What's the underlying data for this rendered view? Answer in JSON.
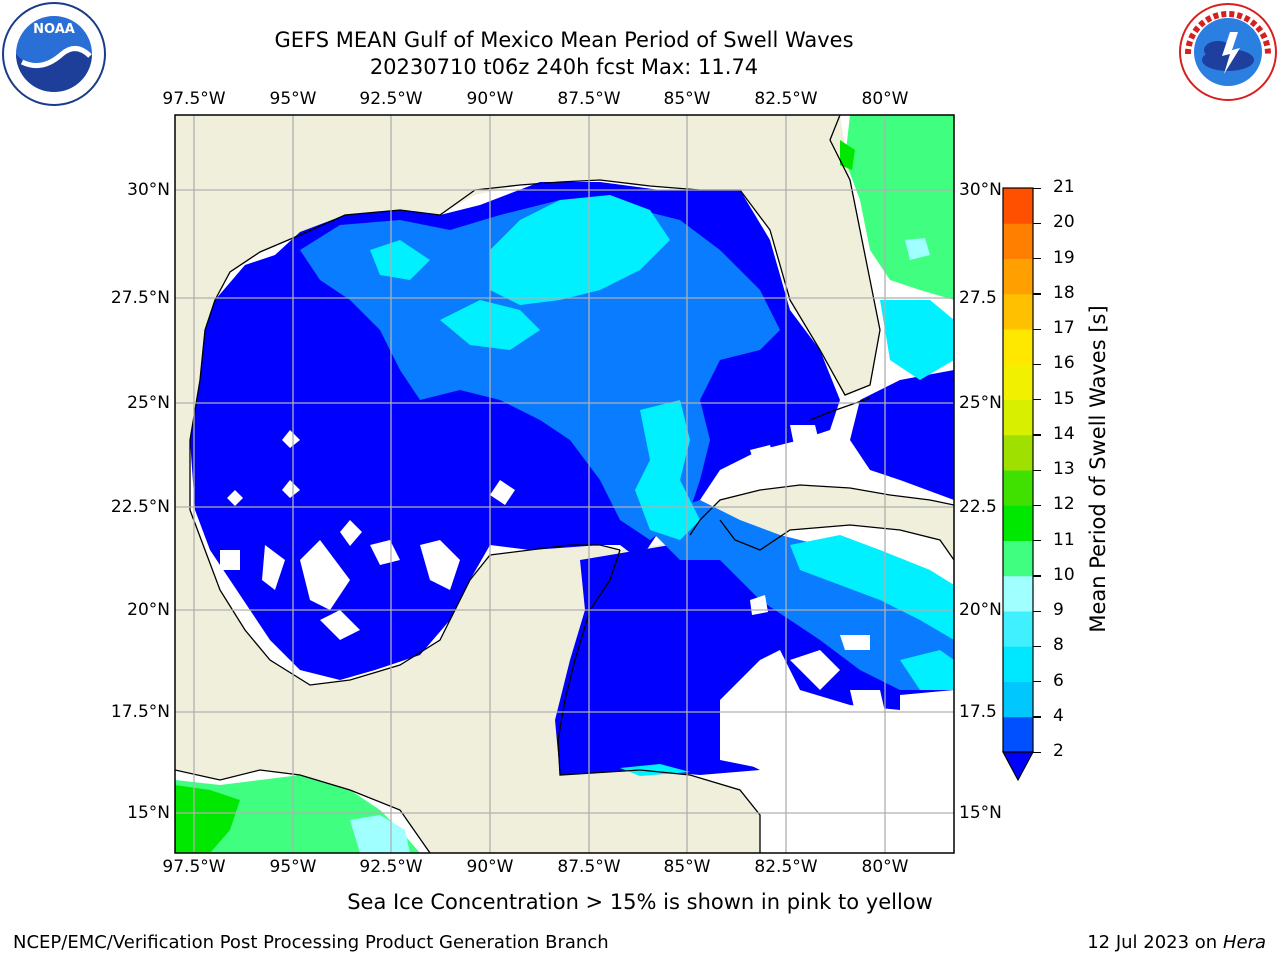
{
  "title_line1": "GEFS MEAN Gulf of Mexico Mean Period of Swell Waves",
  "title_line2": "20230710 t06z 240h fcst   Max: 11.74",
  "lon_labels": [
    "97.5°W",
    "95°W",
    "92.5°W",
    "90°W",
    "87.5°W",
    "85°W",
    "82.5°W",
    "80°W"
  ],
  "lat_labels_left": [
    "30°N",
    "27.5°N",
    "25°N",
    "22.5°N",
    "20°N",
    "17.5°N",
    "15°N"
  ],
  "lat_labels_right": [
    "30°N",
    "27.5",
    "25°N",
    "22.5",
    "20°N",
    "17.5",
    "15°N"
  ],
  "colorbar": {
    "label": "Mean Period of Swell Waves [s]",
    "ticks": [
      "2",
      "4",
      "6",
      "8",
      "9",
      "10",
      "11",
      "12",
      "13",
      "14",
      "15",
      "16",
      "17",
      "18",
      "19",
      "20",
      "21"
    ],
    "colors": [
      "#0050ff",
      "#00c8ff",
      "#00e8ff",
      "#40f0ff",
      "#a0ffff",
      "#40ff80",
      "#00e800",
      "#40e000",
      "#a0e000",
      "#d8f000",
      "#f0f000",
      "#ffe800",
      "#ffc000",
      "#ffa000",
      "#ff8000",
      "#ff5000",
      "#ff2000",
      "#ff0000"
    ],
    "extend_color": "#0000ff"
  },
  "map": {
    "land_color": "#efefdc",
    "ocean_color": "#0000ff",
    "water_no_data": "#ffffff"
  },
  "note": "Sea Ice Concentration > 15% is shown in pink to yellow",
  "footer_left": "NCEP/EMC/Verification Post Processing Product Generation Branch",
  "footer_right_prefix": "12 Jul 2023 on ",
  "footer_right_host": "Hera",
  "logos": {
    "noaa": "NOAA",
    "noaa_ring": "NATIONAL OCEANIC AND ATMOSPHERIC ADMINISTRATION · U.S. DEPARTMENT OF COMMERCE",
    "nws_ring": "NATIONAL WEATHER SERVICE"
  }
}
